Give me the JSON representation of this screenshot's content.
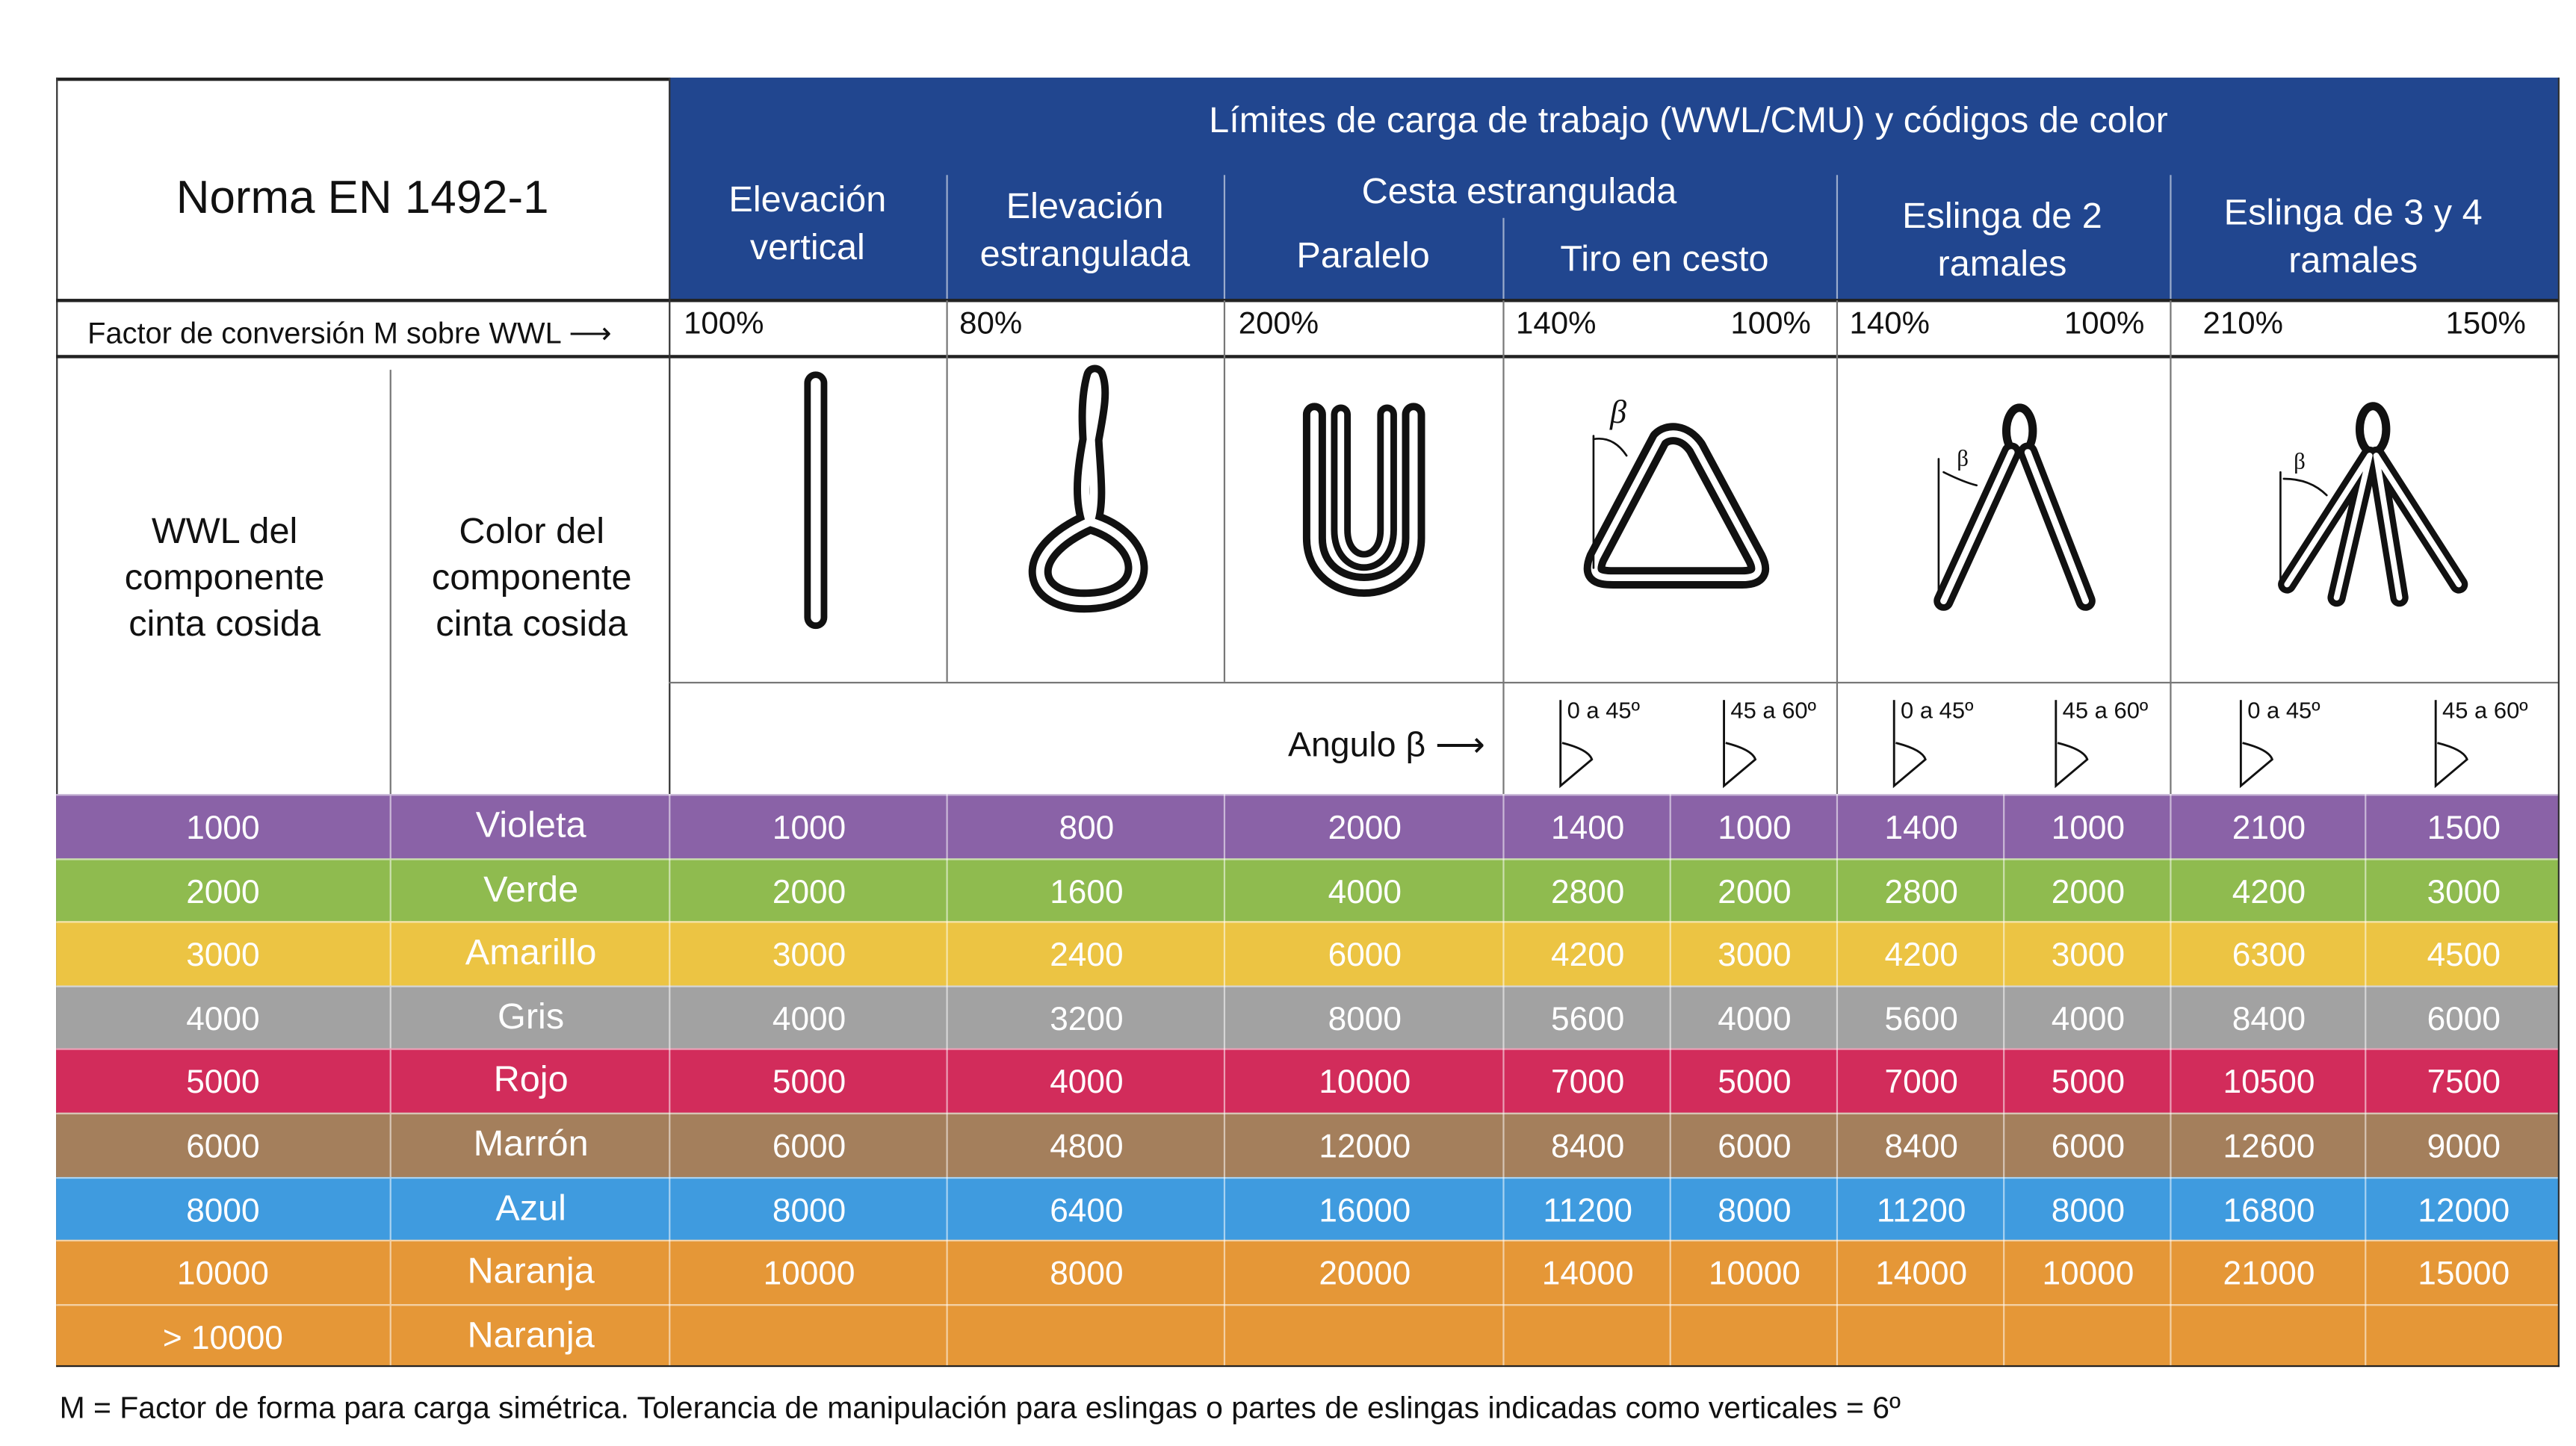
{
  "title_cell": "Norma EN 1492-1",
  "header": {
    "main": "Límites de carga de trabajo (WWL/CMU) y códigos de color",
    "col_vertical": "Elevación vertical",
    "col_choked": "Elevación estrangulada",
    "col_basket": "Cesta estrangulada",
    "sub_parallel": "Paralelo",
    "sub_basket_pull": "Tiro en cesto",
    "col_2leg": "Eslinga de 2 ramales",
    "col_34leg": "Eslinga de 3 y 4 ramales"
  },
  "factor_label": "Factor de conversión M sobre WWL",
  "factors": [
    "100%",
    "80%",
    "200%",
    "140%",
    "100%",
    "140%",
    "100%",
    "210%",
    "150%"
  ],
  "left_headers": {
    "wwl": "WWL del componente cinta cosida",
    "color": "Color del componente cinta cosida"
  },
  "angle_label": "Angulo β",
  "beta_symbol": "β",
  "angle_ranges": [
    "0 a 45º",
    "45 a 60º",
    "0 a 45º",
    "45 a 60º",
    "0 a 45º",
    "45 a 60º"
  ],
  "icons": [
    "vertical-sling-icon",
    "choked-sling-icon",
    "parallel-basket-icon",
    "basket-angle-icon",
    "two-leg-sling-icon",
    "three-four-leg-sling-icon"
  ],
  "rows": [
    {
      "wwl": "1000",
      "color": "Violeta",
      "hex": "#8a62a7",
      "values": [
        "1000",
        "800",
        "2000",
        "1400",
        "1000",
        "1400",
        "1000",
        "2100",
        "1500"
      ]
    },
    {
      "wwl": "2000",
      "color": "Verde",
      "hex": "#8fbb4f",
      "values": [
        "2000",
        "1600",
        "4000",
        "2800",
        "2000",
        "2800",
        "2000",
        "4200",
        "3000"
      ]
    },
    {
      "wwl": "3000",
      "color": "Amarillo",
      "hex": "#ecc443",
      "values": [
        "3000",
        "2400",
        "6000",
        "4200",
        "3000",
        "4200",
        "3000",
        "6300",
        "4500"
      ]
    },
    {
      "wwl": "4000",
      "color": "Gris",
      "hex": "#a2a2a2",
      "values": [
        "4000",
        "3200",
        "8000",
        "5600",
        "4000",
        "5600",
        "4000",
        "8400",
        "6000"
      ]
    },
    {
      "wwl": "5000",
      "color": "Rojo",
      "hex": "#d22c5b",
      "values": [
        "5000",
        "4000",
        "10000",
        "7000",
        "5000",
        "7000",
        "5000",
        "10500",
        "7500"
      ]
    },
    {
      "wwl": "6000",
      "color": "Marrón",
      "hex": "#a47f5c",
      "values": [
        "6000",
        "4800",
        "12000",
        "8400",
        "6000",
        "8400",
        "6000",
        "12600",
        "9000"
      ]
    },
    {
      "wwl": "8000",
      "color": "Azul",
      "hex": "#3f9bdf",
      "values": [
        "8000",
        "6400",
        "16000",
        "11200",
        "8000",
        "11200",
        "8000",
        "16800",
        "12000"
      ]
    },
    {
      "wwl": "10000",
      "color": "Naranja",
      "hex": "#e59737",
      "values": [
        "10000",
        "8000",
        "20000",
        "14000",
        "10000",
        "14000",
        "10000",
        "21000",
        "15000"
      ]
    },
    {
      "wwl": "> 10000",
      "color": "Naranja",
      "hex": "#e59737",
      "values": [
        "",
        "",
        "",
        "",
        "",
        "",
        "",
        "",
        ""
      ]
    }
  ],
  "footnote": "M = Factor de forma para carga simétrica. Tolerancia de manipulación para eslingas o partes de eslingas indicadas como verticales = 6º",
  "colors": {
    "header_blue": "#21468f"
  }
}
